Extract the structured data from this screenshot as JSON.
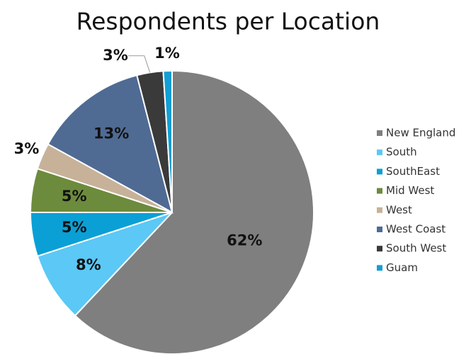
{
  "chart_data": {
    "type": "pie",
    "title": "Respondents per Location",
    "categories": [
      "New England",
      "South",
      "SouthEast",
      "Mid West",
      "West",
      "West Coast",
      "South West",
      "Guam"
    ],
    "values": [
      62,
      8,
      5,
      5,
      3,
      13,
      3,
      1
    ],
    "value_labels": [
      "62%",
      "8%",
      "5%",
      "5%",
      "3%",
      "13%",
      "3%",
      "1%"
    ],
    "colors": [
      "#7f7f80",
      "#5bc8f5",
      "#0aa0d6",
      "#6d8b3c",
      "#c7b299",
      "#4f6b94",
      "#3a3a3a",
      "#129fd4"
    ],
    "legend": "right"
  }
}
